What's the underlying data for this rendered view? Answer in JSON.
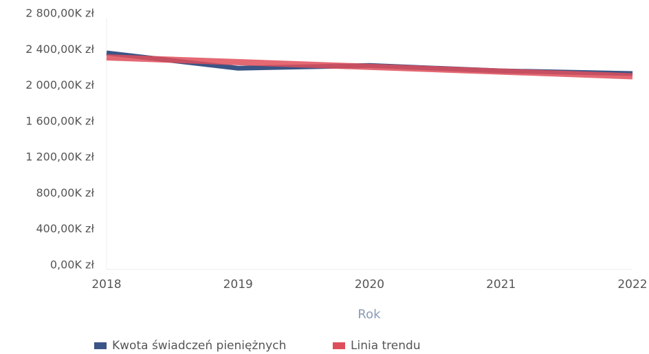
{
  "chart_data": {
    "type": "line",
    "x_label": "Rok",
    "categories": [
      "2018",
      "2019",
      "2020",
      "2021",
      "2022"
    ],
    "series": [
      {
        "name": "Kwota świadczeń pieniężnych",
        "color": "#3b5586",
        "values": [
          2410,
          2240,
          2270,
          2210,
          2180
        ]
      },
      {
        "name": "Linia trendu",
        "color": "#df4f5b",
        "values": [
          2360,
          2307.5,
          2255,
          2202.5,
          2150
        ]
      }
    ],
    "ylim": [
      0,
      2800
    ],
    "yticks": [
      {
        "value": 0,
        "label": "0,00K zł"
      },
      {
        "value": 400,
        "label": "400,00K zł"
      },
      {
        "value": 800,
        "label": "800,00K zł"
      },
      {
        "value": 1200,
        "label": "1 200,00K zł"
      },
      {
        "value": 1600,
        "label": "1 600,00K zł"
      },
      {
        "value": 2000,
        "label": "2 000,00K zł"
      },
      {
        "value": 2400,
        "label": "2 400,00K zł"
      },
      {
        "value": 2800,
        "label": "2 800,00K zł"
      }
    ],
    "grid": false,
    "legend": "bottom"
  }
}
